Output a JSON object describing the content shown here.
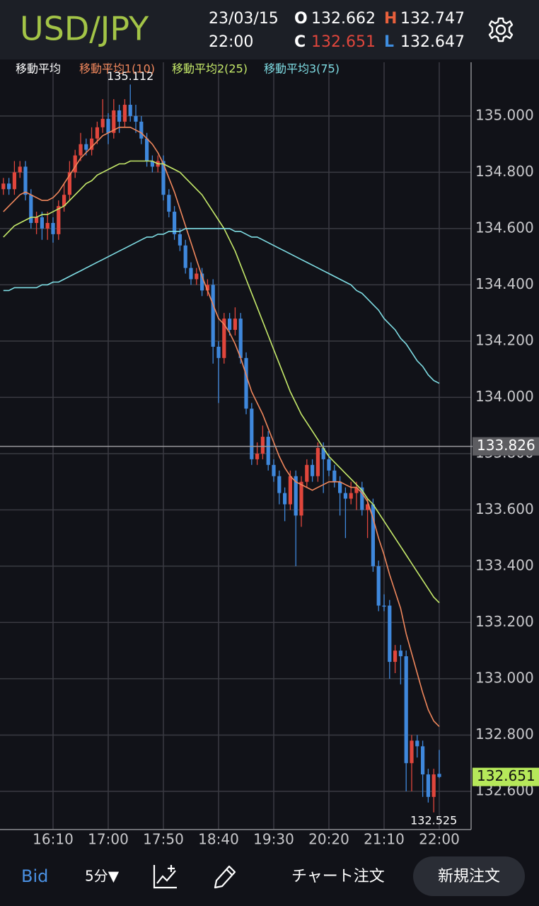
{
  "header": {
    "symbol": "USD/JPY",
    "date": "23/03/15",
    "time": "22:00",
    "labels": {
      "open": "O",
      "high": "H",
      "close": "C",
      "low": "L"
    }
  },
  "chart_data": {
    "type": "candlestick",
    "categories": [
      null,
      null,
      null,
      null,
      null,
      null,
      null,
      null,
      null,
      "16:10",
      null,
      null,
      null,
      null,
      null,
      null,
      null,
      null,
      null,
      "17:00",
      null,
      null,
      null,
      null,
      null,
      null,
      null,
      null,
      null,
      "17:50",
      null,
      null,
      null,
      null,
      null,
      null,
      null,
      null,
      null,
      "18:40",
      null,
      null,
      null,
      null,
      null,
      null,
      null,
      null,
      null,
      "19:30",
      null,
      null,
      null,
      null,
      null,
      null,
      null,
      null,
      null,
      "20:20",
      null,
      null,
      null,
      null,
      null,
      null,
      null,
      null,
      null,
      "21:10",
      null,
      null,
      null,
      null,
      null,
      null,
      null,
      null,
      null,
      "22:00"
    ],
    "open": [
      134.74,
      134.76,
      134.74,
      134.8,
      134.82,
      134.72,
      134.62,
      134.64,
      134.6,
      134.62,
      134.58,
      134.68,
      134.72,
      134.8,
      134.86,
      134.9,
      134.88,
      134.92,
      134.96,
      134.99,
      134.94,
      135.02,
      134.98,
      135.04,
      135.0,
      134.98,
      134.92,
      134.84,
      134.82,
      134.84,
      134.72,
      134.66,
      134.58,
      134.54,
      134.46,
      134.42,
      134.44,
      134.38,
      134.4,
      134.18,
      134.14,
      134.28,
      134.24,
      134.28,
      134.14,
      133.96,
      133.78,
      133.8,
      133.86,
      133.76,
      133.72,
      133.66,
      133.62,
      133.72,
      133.58,
      133.7,
      133.76,
      133.72,
      133.82,
      133.78,
      133.74,
      133.7,
      133.66,
      133.64,
      133.66,
      133.68,
      133.6,
      133.62,
      133.4,
      133.26,
      133.26,
      133.06,
      133.1,
      133.08,
      132.7,
      132.78,
      132.76,
      132.66,
      132.58,
      132.662
    ],
    "high": [
      134.78,
      134.78,
      134.84,
      134.84,
      134.84,
      134.74,
      134.66,
      134.66,
      134.66,
      134.64,
      134.7,
      134.76,
      134.84,
      134.88,
      134.94,
      134.92,
      134.96,
      134.98,
      135.06,
      135.01,
      135.06,
      135.04,
      135.06,
      135.112,
      135.04,
      135.0,
      134.94,
      134.86,
      134.86,
      134.86,
      134.74,
      134.68,
      134.6,
      134.56,
      134.48,
      134.46,
      134.46,
      134.42,
      134.42,
      134.2,
      134.3,
      134.3,
      134.32,
      134.3,
      134.16,
      133.98,
      133.84,
      133.9,
      133.88,
      133.78,
      133.74,
      133.68,
      133.74,
      133.74,
      133.72,
      133.78,
      133.78,
      133.84,
      133.84,
      133.8,
      133.76,
      133.72,
      133.68,
      133.7,
      133.7,
      133.7,
      133.64,
      133.64,
      133.42,
      133.3,
      133.28,
      133.12,
      133.12,
      133.1,
      132.8,
      132.8,
      132.78,
      132.68,
      132.68,
      132.747
    ],
    "low": [
      134.72,
      134.72,
      134.72,
      134.78,
      134.7,
      134.6,
      134.58,
      134.56,
      134.56,
      134.55,
      134.56,
      134.66,
      134.7,
      134.78,
      134.84,
      134.86,
      134.86,
      134.9,
      134.94,
      134.9,
      134.92,
      134.94,
      134.96,
      134.98,
      134.94,
      134.9,
      134.82,
      134.8,
      134.8,
      134.7,
      134.64,
      134.56,
      134.52,
      134.44,
      134.4,
      134.4,
      134.36,
      134.36,
      134.12,
      133.98,
      134.12,
      134.22,
      134.22,
      134.12,
      133.94,
      133.76,
      133.76,
      133.78,
      133.74,
      133.7,
      133.62,
      133.56,
      133.6,
      133.4,
      133.54,
      133.68,
      133.7,
      133.7,
      133.66,
      133.72,
      133.68,
      133.58,
      133.5,
      133.62,
      133.6,
      133.58,
      133.5,
      133.38,
      133.24,
      133.24,
      133.0,
      133.02,
      132.98,
      132.6,
      132.6,
      132.72,
      132.58,
      132.56,
      132.525,
      132.647
    ],
    "close": [
      134.76,
      134.74,
      134.8,
      134.82,
      134.72,
      134.62,
      134.64,
      134.6,
      134.62,
      134.58,
      134.68,
      134.72,
      134.8,
      134.86,
      134.9,
      134.88,
      134.92,
      134.96,
      134.99,
      134.94,
      135.02,
      134.98,
      135.04,
      135.0,
      134.98,
      134.92,
      134.84,
      134.82,
      134.84,
      134.72,
      134.66,
      134.58,
      134.54,
      134.46,
      134.42,
      134.44,
      134.38,
      134.4,
      134.18,
      134.14,
      134.28,
      134.24,
      134.28,
      134.14,
      133.96,
      133.78,
      133.8,
      133.86,
      133.76,
      133.72,
      133.66,
      133.62,
      133.72,
      133.58,
      133.7,
      133.76,
      133.72,
      133.82,
      133.78,
      133.74,
      133.7,
      133.66,
      133.64,
      133.66,
      133.68,
      133.6,
      133.62,
      133.4,
      133.26,
      133.26,
      133.06,
      133.1,
      133.08,
      132.7,
      132.78,
      132.76,
      132.66,
      132.58,
      132.66,
      132.651
    ],
    "up_color": "#e0463c",
    "down_color": "#3f88dc",
    "indicator_title": "移動平均",
    "series": [
      {
        "name": "移動平均1(10)",
        "color": "#f0875c",
        "values": [
          134.66,
          134.68,
          134.7,
          134.72,
          134.73,
          134.72,
          134.71,
          134.7,
          134.7,
          134.71,
          134.73,
          134.76,
          134.79,
          134.82,
          134.85,
          134.87,
          134.89,
          134.91,
          134.93,
          134.94,
          134.95,
          134.96,
          134.96,
          134.96,
          134.95,
          134.94,
          134.92,
          134.9,
          134.87,
          134.83,
          134.78,
          134.73,
          134.67,
          134.61,
          134.55,
          134.49,
          134.43,
          134.38,
          134.33,
          134.28,
          134.26,
          134.23,
          134.19,
          134.14,
          134.08,
          134.02,
          133.98,
          133.94,
          133.89,
          133.84,
          133.79,
          133.75,
          133.72,
          133.7,
          133.69,
          133.68,
          133.67,
          133.68,
          133.69,
          133.7,
          133.7,
          133.7,
          133.69,
          133.68,
          133.68,
          133.66,
          133.63,
          133.57,
          133.5,
          133.44,
          133.37,
          133.31,
          133.25,
          133.16,
          133.09,
          133.02,
          132.95,
          132.89,
          132.85,
          132.83
        ]
      },
      {
        "name": "移動平均2(25)",
        "color": "#c6ea6a",
        "values": [
          134.57,
          134.59,
          134.61,
          134.62,
          134.63,
          134.64,
          134.64,
          134.65,
          134.65,
          134.66,
          134.67,
          134.68,
          134.7,
          134.72,
          134.74,
          134.76,
          134.77,
          134.79,
          134.8,
          134.81,
          134.82,
          134.83,
          134.83,
          134.84,
          134.84,
          134.84,
          134.84,
          134.84,
          134.83,
          134.83,
          134.82,
          134.81,
          134.8,
          134.78,
          134.76,
          134.74,
          134.72,
          134.69,
          134.66,
          134.63,
          134.6,
          134.56,
          134.52,
          134.47,
          134.42,
          134.37,
          134.32,
          134.27,
          134.22,
          134.17,
          134.12,
          134.07,
          134.02,
          133.98,
          133.94,
          133.91,
          133.88,
          133.85,
          133.82,
          133.79,
          133.77,
          133.75,
          133.73,
          133.71,
          133.69,
          133.67,
          133.64,
          133.62,
          133.59,
          133.56,
          133.53,
          133.5,
          133.47,
          133.44,
          133.41,
          133.38,
          133.35,
          133.32,
          133.29,
          133.27
        ]
      },
      {
        "name": "移動平均3(75)",
        "color": "#7fdde4",
        "values": [
          134.38,
          134.38,
          134.39,
          134.39,
          134.39,
          134.39,
          134.39,
          134.4,
          134.4,
          134.41,
          134.41,
          134.42,
          134.43,
          134.44,
          134.45,
          134.46,
          134.47,
          134.48,
          134.49,
          134.5,
          134.51,
          134.52,
          134.53,
          134.54,
          134.55,
          134.56,
          134.57,
          134.57,
          134.58,
          134.58,
          134.59,
          134.59,
          134.59,
          134.6,
          134.6,
          134.6,
          134.6,
          134.6,
          134.6,
          134.6,
          134.6,
          134.6,
          134.59,
          134.59,
          134.58,
          134.57,
          134.57,
          134.56,
          134.55,
          134.54,
          134.53,
          134.52,
          134.51,
          134.5,
          134.49,
          134.48,
          134.47,
          134.46,
          134.45,
          134.44,
          134.43,
          134.42,
          134.41,
          134.4,
          134.38,
          134.37,
          134.35,
          134.33,
          134.31,
          134.28,
          134.26,
          134.24,
          134.21,
          134.19,
          134.16,
          134.13,
          134.11,
          134.08,
          134.06,
          134.05
        ]
      }
    ],
    "ylim": [
      132.464,
      135.191
    ],
    "yticks": [
      {
        "value": 132.6,
        "label": "132.600"
      },
      {
        "value": 132.8,
        "label": "132.800"
      },
      {
        "value": 133.0,
        "label": "133.000"
      },
      {
        "value": 133.2,
        "label": "133.200"
      },
      {
        "value": 133.4,
        "label": "133.400"
      },
      {
        "value": 133.6,
        "label": "133.600"
      },
      {
        "value": 133.8,
        "label": "133.800"
      },
      {
        "value": 134.0,
        "label": "134.000"
      },
      {
        "value": 134.2,
        "label": "134.200"
      },
      {
        "value": 134.4,
        "label": "134.400"
      },
      {
        "value": 134.6,
        "label": "134.600"
      },
      {
        "value": 134.8,
        "label": "134.800"
      },
      {
        "value": 135.0,
        "label": "135.000"
      }
    ],
    "grid": true,
    "reference_line": 133.826,
    "current_color": "#b6e85a"
  },
  "toolbar": {
    "price_type": "Bid",
    "interval": "5分▼",
    "chart_order": "チャート注文",
    "new_order": "新規注文"
  }
}
